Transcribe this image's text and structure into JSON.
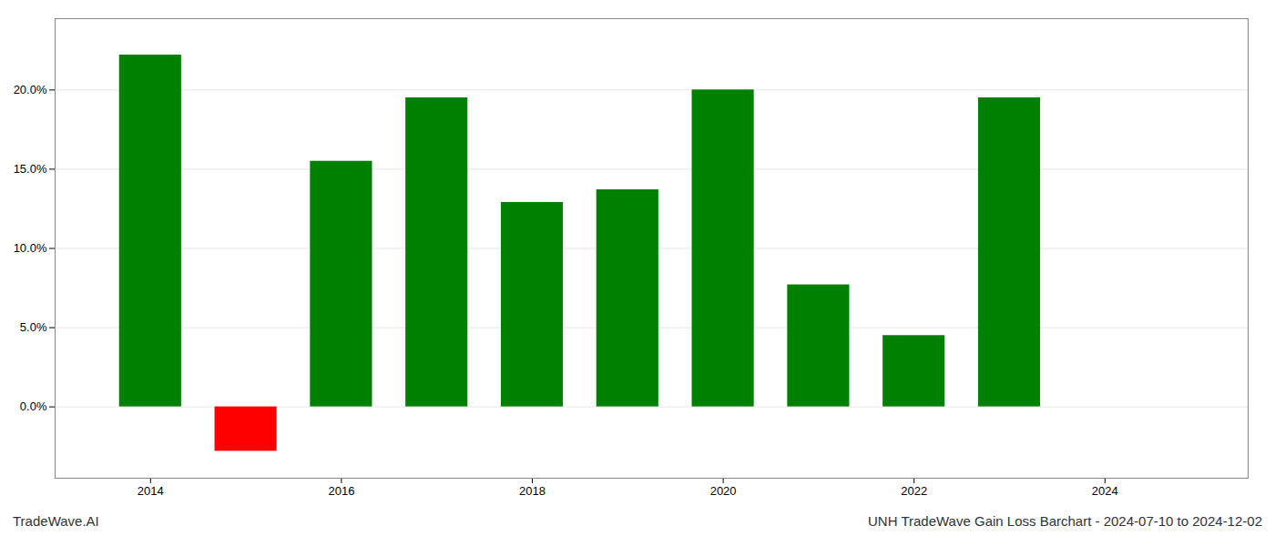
{
  "chart_data": {
    "type": "bar",
    "title": "UNH TradeWave Gain Loss Barchart - 2024-07-10 to 2024-12-02",
    "subtitle": "TradeWave.AI",
    "x": [
      2014,
      2015,
      2016,
      2017,
      2018,
      2019,
      2020,
      2021,
      2022,
      2023
    ],
    "values": [
      0.222,
      -0.028,
      0.155,
      0.195,
      0.129,
      0.137,
      0.2,
      0.077,
      0.045,
      0.195
    ],
    "colors": [
      "#008000",
      "#ff0000",
      "#008000",
      "#008000",
      "#008000",
      "#008000",
      "#008000",
      "#008000",
      "#008000",
      "#008000"
    ],
    "xlim": [
      2013.0,
      2025.5
    ],
    "xticks": [
      2014,
      2016,
      2018,
      2020,
      2022,
      2024
    ],
    "ylim": [
      -0.045,
      0.245
    ],
    "yticks": [
      {
        "value": 0.0,
        "label": "0.0%"
      },
      {
        "value": 0.05,
        "label": "5.0%"
      },
      {
        "value": 0.1,
        "label": "10.0%"
      },
      {
        "value": 0.15,
        "label": "15.0%"
      },
      {
        "value": 0.2,
        "label": "20.0%"
      }
    ],
    "grid": true
  }
}
